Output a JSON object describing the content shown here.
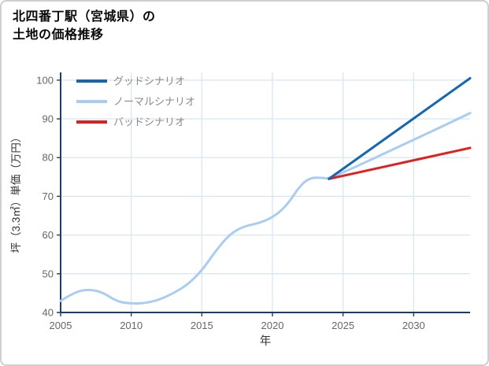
{
  "chart": {
    "title_line1": "北四番丁駅（宮城県）の",
    "title_line2": "土地の価格推移"
  },
  "chart_data": {
    "type": "line",
    "title": "北四番丁駅（宮城県）の土地の価格推移",
    "xlabel": "年",
    "ylabel": "坪（3.3㎡）単価（万円）",
    "xlim": [
      2005,
      2034
    ],
    "ylim": [
      40,
      102
    ],
    "xticks": [
      2005,
      2010,
      2015,
      2020,
      2025,
      2030
    ],
    "yticks": [
      40,
      50,
      60,
      70,
      80,
      90,
      100
    ],
    "grid": true,
    "legend_position": "top-left",
    "colors": {
      "axis": "#1d3d63",
      "grid": "#d8e6f4",
      "tick_label": "#666666",
      "axis_title": "#333333",
      "legend_text": "#8a8a8a",
      "title": "#0a0a0a"
    },
    "series": [
      {
        "name": "グッドシナリオ",
        "color": "#1467b0",
        "x": [
          2024,
          2034
        ],
        "y": [
          74.5,
          100.5
        ]
      },
      {
        "name": "ノーマルシナリオ",
        "color": "#a9cdf1",
        "x": [
          2005,
          2006,
          2007,
          2008,
          2009,
          2010,
          2011,
          2012,
          2013,
          2014,
          2015,
          2016,
          2017,
          2018,
          2019,
          2020,
          2021,
          2022,
          2022.7,
          2023.5,
          2024,
          2026,
          2028,
          2030,
          2032,
          2034
        ],
        "y": [
          43,
          45.3,
          46,
          45.2,
          42.8,
          42.3,
          42.4,
          43.3,
          45,
          47.2,
          50.8,
          56,
          60.3,
          62.3,
          63,
          64.5,
          67.5,
          73,
          74.8,
          74.8,
          74.5,
          77.8,
          81.2,
          84.6,
          88,
          91.5
        ]
      },
      {
        "name": "バッドシナリオ",
        "color": "#e01f1f",
        "x": [
          2024,
          2034
        ],
        "y": [
          74.5,
          82.5
        ]
      }
    ]
  }
}
